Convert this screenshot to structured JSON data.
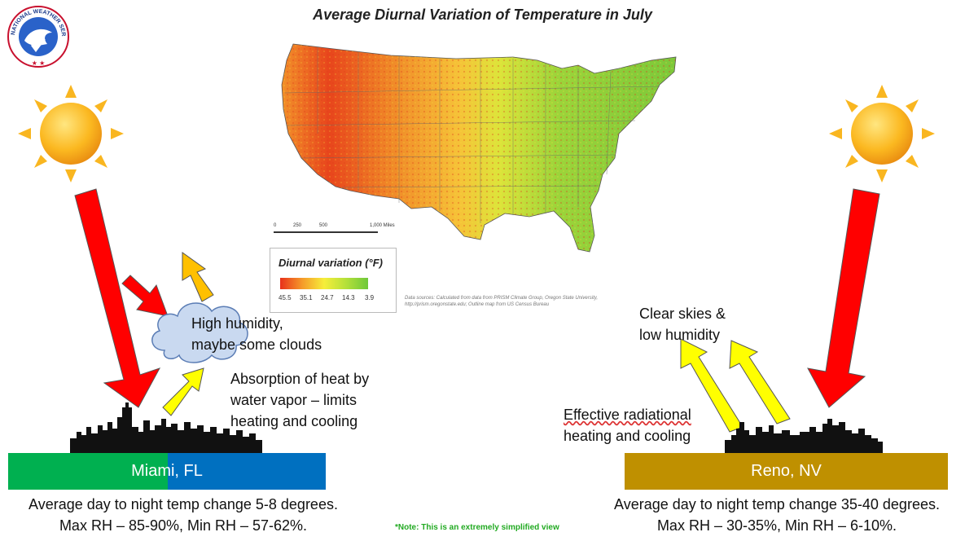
{
  "title": "Average Diurnal Variation of Temperature in July",
  "logo": {
    "text": "NATIONAL WEATHER SERVICE",
    "icon": "nws-logo-icon"
  },
  "map": {
    "legend_title": "Diurnal variation (°F)",
    "legend_ticks": [
      "45.5",
      "35.1",
      "24.7",
      "14.3",
      "3.9"
    ],
    "legend_colors": [
      "#e8311a",
      "#f59a2a",
      "#f6ee3a",
      "#b4e03a",
      "#6ec83a"
    ],
    "scale_labels": [
      "0",
      "250",
      "500",
      "1,000 Miles"
    ],
    "source_text": "Data sources: Calculated from data from PRISM Climate Group, Oregon State University, http://prism.oregonstate.edu; Outline map from US Census Bureau"
  },
  "miami": {
    "label": "Miami, FL",
    "cloud_text_line1": "High humidity,",
    "cloud_text_line2": "maybe some clouds",
    "absorption_line1": "Absorption of heat by",
    "absorption_line2": "water vapor – limits",
    "absorption_line3": "heating and cooling",
    "caption_line1": "Average day to night temp change 5-8 degrees.",
    "caption_line2": "Max RH – 85-90%, Min RH – 57-62%.",
    "colors": [
      "#00b050",
      "#0070c0"
    ]
  },
  "reno": {
    "label": "Reno, NV",
    "clear_line1": "Clear skies &",
    "clear_line2": "low humidity",
    "effective_line1": "Effective radiational",
    "effective_line2": "heating and cooling",
    "caption_line1": "Average day to night temp change 35-40 degrees.",
    "caption_line2": "Max RH – 30-35%, Min RH – 6-10%.",
    "color": "#bf9000"
  },
  "note": "*Note: This is an extremely simplified view",
  "icons": {
    "sun": "sun-icon",
    "arrow_red": "red-arrow-icon",
    "arrow_yellow": "yellow-arrow-icon",
    "arrow_orange": "orange-arrow-icon",
    "cloud": "cloud-icon",
    "skyline": "city-skyline-icon"
  }
}
